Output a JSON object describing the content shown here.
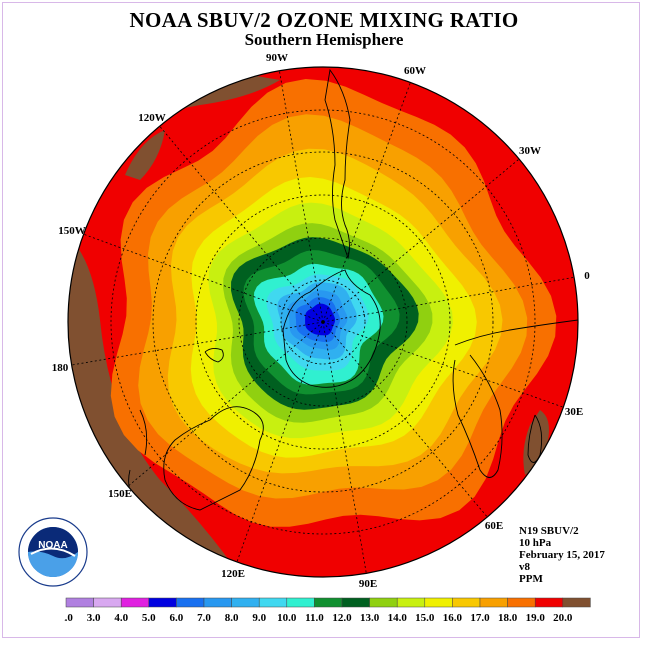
{
  "title": "NOAA SBUV/2 OZONE MIXING RATIO",
  "subtitle": "Southern Hemisphere",
  "longitude_labels": [
    "90W",
    "60W",
    "30W",
    "0",
    "30E",
    "60E",
    "90E",
    "120E",
    "150E",
    "180",
    "150W",
    "120W"
  ],
  "info": {
    "satellite": "N19 SBUV/2",
    "level": "10 hPa",
    "date": "February 15, 2017",
    "version": "v8",
    "units": "PPM"
  },
  "colorbar": {
    "levels": [
      "2.0",
      "3.0",
      "4.0",
      "5.0",
      "6.0",
      "7.0",
      "8.0",
      "9.0",
      "10.0",
      "11.0",
      "12.0",
      "13.0",
      "14.0",
      "15.0",
      "16.0",
      "17.0",
      "18.0",
      "19.0",
      "20.0"
    ],
    "colors": [
      "#b080e0",
      "#d8a8f0",
      "#e020e0",
      "#0000e0",
      "#1870f0",
      "#2898f0",
      "#30b0f0",
      "#40d8f0",
      "#30f0d0",
      "#109030",
      "#006020",
      "#90d010",
      "#c8f010",
      "#f0f000",
      "#f8c800",
      "#f8a000",
      "#f87000",
      "#f00000",
      "#805030"
    ]
  },
  "map_colors": {
    "outer": "#f00000",
    "ring_18": "#f87000",
    "ring_17": "#f8a000",
    "ring_16": "#f8c800",
    "ring_15": "#f0f000",
    "ring_14": "#c8f010",
    "ring_13": "#90d010",
    "ring_12": "#006020",
    "ring_11": "#109030",
    "ring_10": "#30f0d0",
    "ring_9": "#40d8f0",
    "ring_8": "#30b0f0",
    "ring_7": "#2898f0",
    "ring_6": "#1870f0",
    "core": "#0000e0",
    "high": "#805030"
  },
  "logo_text": "NOAA"
}
